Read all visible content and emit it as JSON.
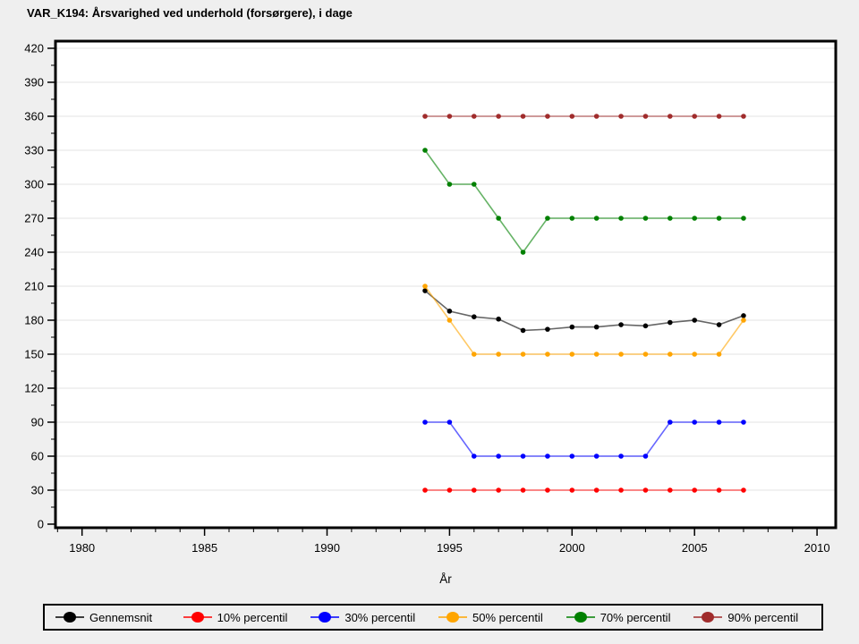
{
  "title": "VAR_K194: Årsvarighed ved underhold (forsørgere), i dage",
  "chart_data": {
    "type": "line",
    "title": "VAR_K194: Årsvarighed ved underhold (forsørgere), i dage",
    "xlabel": "År",
    "ylabel": "",
    "x": [
      1994,
      1995,
      1996,
      1997,
      1998,
      1999,
      2000,
      2001,
      2002,
      2003,
      2004,
      2005,
      2006,
      2007
    ],
    "series": [
      {
        "name": "Gennemsnit",
        "color": "#000000",
        "values": [
          206,
          188,
          183,
          181,
          171,
          172,
          174,
          174,
          176,
          175,
          178,
          180,
          176,
          184
        ]
      },
      {
        "name": "10% percentil",
        "color": "#ff0000",
        "values": [
          30,
          30,
          30,
          30,
          30,
          30,
          30,
          30,
          30,
          30,
          30,
          30,
          30,
          30
        ]
      },
      {
        "name": "30% percentil",
        "color": "#0000ff",
        "values": [
          90,
          90,
          60,
          60,
          60,
          60,
          60,
          60,
          60,
          60,
          90,
          90,
          90,
          90
        ]
      },
      {
        "name": "50% percentil",
        "color": "#ffa500",
        "values": [
          210,
          180,
          150,
          150,
          150,
          150,
          150,
          150,
          150,
          150,
          150,
          150,
          150,
          180
        ]
      },
      {
        "name": "70% percentil",
        "color": "#008000",
        "values": [
          330,
          300,
          300,
          270,
          240,
          270,
          270,
          270,
          270,
          270,
          270,
          270,
          270,
          270
        ]
      },
      {
        "name": "90% percentil",
        "color": "#a02c2c",
        "values": [
          360,
          360,
          360,
          360,
          360,
          360,
          360,
          360,
          360,
          360,
          360,
          360,
          360,
          360
        ]
      }
    ],
    "xlim": [
      1978.9,
      2010.8
    ],
    "ylim": [
      0,
      420
    ],
    "x_ticks": [
      1980,
      1985,
      1990,
      1995,
      2000,
      2005,
      2010
    ],
    "x_minor_step": 1,
    "y_ticks": [
      0,
      30,
      60,
      90,
      120,
      150,
      180,
      210,
      240,
      270,
      300,
      330,
      360,
      390,
      420
    ],
    "y_minor_step": 15,
    "grid": "horizontal",
    "legend_position": "bottom",
    "colors": {
      "background": "#efefef",
      "plot_background": "#ffffff",
      "gridline": "#e3e3e3",
      "axis": "#000000"
    }
  }
}
